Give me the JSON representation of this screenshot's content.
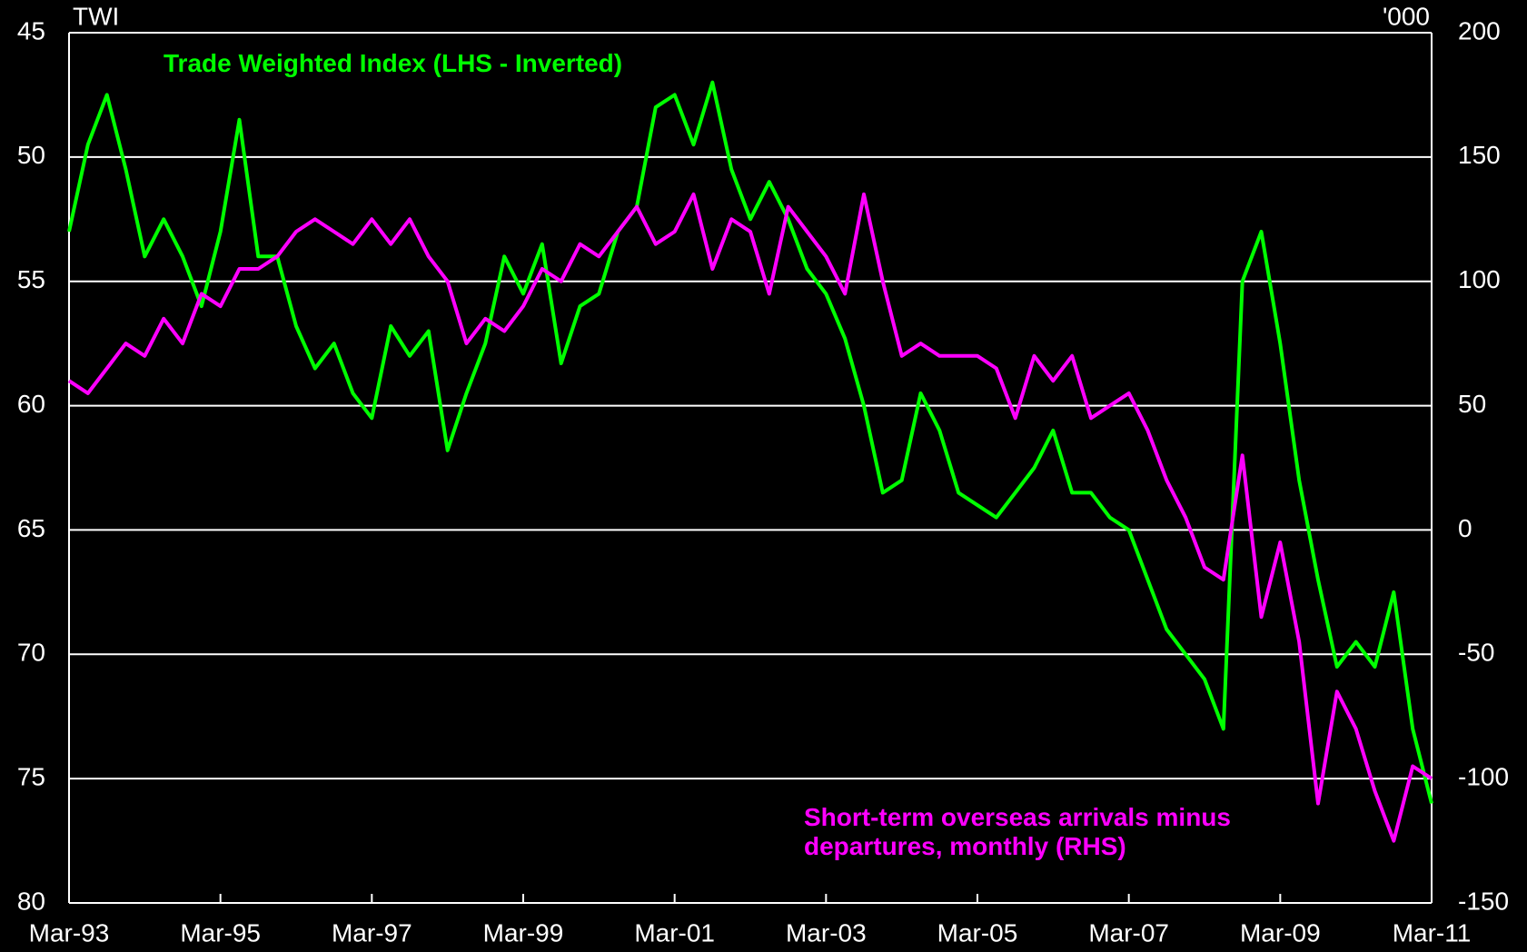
{
  "chart_data": {
    "type": "line",
    "y_label": "TWI",
    "y2_label": "'000",
    "x": [
      "Mar-93",
      "Jun-93",
      "Sep-93",
      "Dec-93",
      "Mar-94",
      "Jun-94",
      "Sep-94",
      "Dec-94",
      "Mar-95",
      "Jun-95",
      "Sep-95",
      "Dec-95",
      "Mar-96",
      "Jun-96",
      "Sep-96",
      "Dec-96",
      "Mar-97",
      "Jun-97",
      "Sep-97",
      "Dec-97",
      "Mar-98",
      "Jun-98",
      "Sep-98",
      "Dec-98",
      "Mar-99",
      "Jun-99",
      "Sep-99",
      "Dec-99",
      "Mar-00",
      "Jun-00",
      "Sep-00",
      "Dec-00",
      "Mar-01",
      "Jun-01",
      "Sep-01",
      "Dec-01",
      "Mar-02",
      "Jun-02",
      "Sep-02",
      "Dec-02",
      "Mar-03",
      "Jun-03",
      "Sep-03",
      "Dec-03",
      "Mar-04",
      "Jun-04",
      "Sep-04",
      "Dec-04",
      "Mar-05",
      "Jun-05",
      "Sep-05",
      "Dec-05",
      "Mar-06",
      "Jun-06",
      "Sep-06",
      "Dec-06",
      "Mar-07",
      "Jun-07",
      "Sep-07",
      "Dec-07",
      "Mar-08",
      "Jun-08",
      "Sep-08",
      "Dec-08",
      "Mar-09",
      "Jun-09",
      "Sep-09",
      "Dec-09",
      "Mar-10",
      "Jun-10",
      "Sep-10",
      "Dec-10",
      "Mar-11"
    ],
    "xticks": [
      "Mar-93",
      "Mar-95",
      "Mar-97",
      "Mar-99",
      "Mar-01",
      "Mar-03",
      "Mar-05",
      "Mar-07",
      "Mar-09",
      "Mar-11"
    ],
    "ylim": [
      45,
      80
    ],
    "y_inverted": true,
    "yticks": [
      45,
      50,
      55,
      60,
      65,
      70,
      75,
      80
    ],
    "y2lim": [
      -150,
      200
    ],
    "y2ticks": [
      200,
      150,
      100,
      50,
      0,
      -50,
      -100,
      -150
    ],
    "grid": true,
    "series": [
      {
        "name": "Trade Weighted Index (LHS - Inverted)",
        "color": "#00ff00",
        "axis": "y",
        "values": [
          53,
          49.5,
          47.5,
          50.5,
          54,
          52.5,
          54,
          56,
          53,
          48.5,
          54,
          54,
          56.8,
          58.5,
          57.5,
          59.5,
          60.5,
          56.8,
          58,
          57,
          61.8,
          59.5,
          57.5,
          54,
          55.5,
          53.5,
          58.3,
          56,
          55.5,
          53,
          52,
          48,
          47.5,
          49.5,
          47,
          50.5,
          52.5,
          51,
          52.5,
          54.5,
          55.5,
          57.3,
          60,
          63.5,
          63,
          59.5,
          61,
          63.5,
          64,
          64.5,
          63.5,
          62.5,
          61,
          63.5,
          63.5,
          64.5,
          65,
          67,
          69,
          70,
          71,
          73,
          55,
          53,
          57.5,
          63,
          67,
          70.5,
          69.5,
          70.5,
          67.5,
          73,
          76
        ]
      },
      {
        "name": "Short-term overseas arrivals minus departures, monthly (RHS)",
        "color": "#ff00ff",
        "axis": "y2",
        "values": [
          60,
          55,
          65,
          75,
          70,
          85,
          75,
          95,
          90,
          105,
          105,
          110,
          120,
          125,
          120,
          115,
          125,
          115,
          125,
          110,
          100,
          75,
          85,
          80,
          90,
          105,
          100,
          115,
          110,
          120,
          130,
          115,
          120,
          135,
          105,
          125,
          120,
          95,
          130,
          120,
          110,
          95,
          135,
          100,
          70,
          75,
          70,
          70,
          70,
          65,
          45,
          70,
          60,
          70,
          45,
          50,
          55,
          40,
          20,
          5,
          -15,
          -20,
          30,
          -35,
          -5,
          -45,
          -110,
          -65,
          -80,
          -105,
          -125,
          -95,
          -100
        ]
      }
    ]
  }
}
